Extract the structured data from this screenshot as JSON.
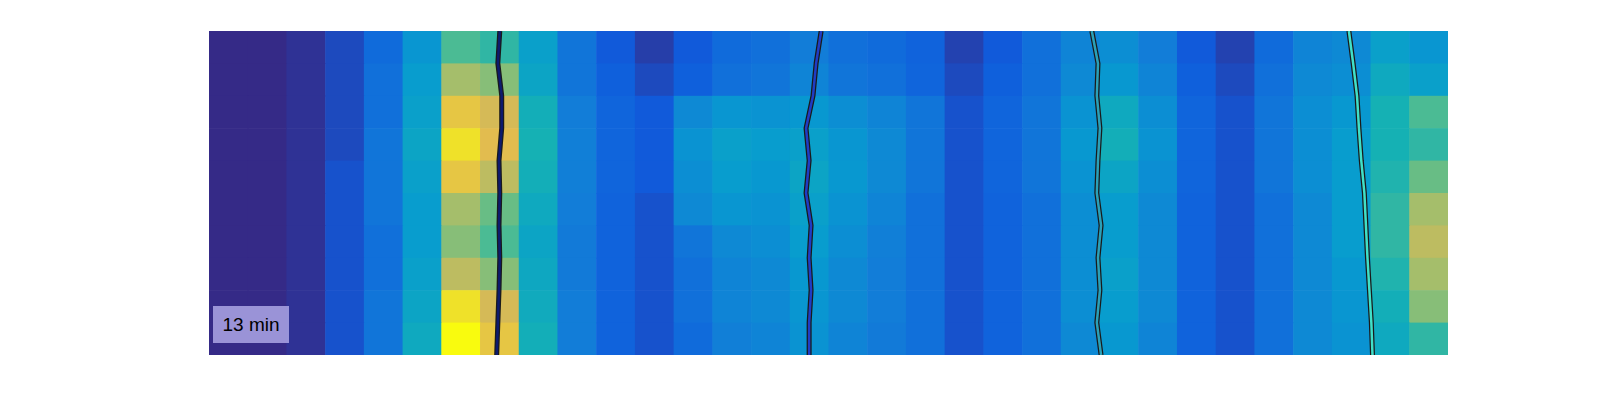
{
  "chart_data": {
    "type": "heatmap",
    "annotation": "13 min",
    "xlim": [
      0,
      32
    ],
    "ylim": [
      0,
      10
    ],
    "tick_labels": false,
    "color_range": [
      0,
      1
    ],
    "z": [
      [
        0,
        0,
        0.02,
        0.08,
        0.18,
        0.35,
        0.6,
        0.55,
        0.4,
        0.22,
        0.12,
        0.05,
        0.12,
        0.18,
        0.2,
        0.25,
        0.2,
        0.18,
        0.15,
        0.06,
        0.12,
        0.2,
        0.28,
        0.32,
        0.25,
        0.12,
        0.06,
        0.18,
        0.28,
        0.3,
        0.4,
        0.35
      ],
      [
        0,
        0,
        0.02,
        0.08,
        0.2,
        0.38,
        0.75,
        0.7,
        0.42,
        0.22,
        0.14,
        0.08,
        0.14,
        0.2,
        0.22,
        0.28,
        0.22,
        0.2,
        0.16,
        0.08,
        0.14,
        0.2,
        0.3,
        0.36,
        0.28,
        0.14,
        0.08,
        0.2,
        0.3,
        0.32,
        0.45,
        0.4
      ],
      [
        0,
        0,
        0.02,
        0.08,
        0.2,
        0.4,
        0.9,
        0.85,
        0.48,
        0.25,
        0.16,
        0.12,
        0.3,
        0.35,
        0.34,
        0.36,
        0.32,
        0.28,
        0.22,
        0.1,
        0.16,
        0.22,
        0.34,
        0.45,
        0.32,
        0.16,
        0.1,
        0.22,
        0.32,
        0.36,
        0.5,
        0.6
      ],
      [
        0,
        0,
        0.02,
        0.08,
        0.22,
        0.42,
        0.95,
        0.88,
        0.5,
        0.26,
        0.16,
        0.12,
        0.34,
        0.4,
        0.38,
        0.4,
        0.35,
        0.3,
        0.22,
        0.1,
        0.16,
        0.22,
        0.36,
        0.48,
        0.34,
        0.16,
        0.1,
        0.22,
        0.32,
        0.38,
        0.5,
        0.55
      ],
      [
        0,
        0,
        0.02,
        0.1,
        0.22,
        0.4,
        0.9,
        0.8,
        0.48,
        0.26,
        0.16,
        0.12,
        0.32,
        0.38,
        0.36,
        0.42,
        0.36,
        0.3,
        0.22,
        0.1,
        0.16,
        0.22,
        0.34,
        0.42,
        0.32,
        0.16,
        0.1,
        0.22,
        0.32,
        0.38,
        0.52,
        0.65
      ],
      [
        0,
        0,
        0.02,
        0.1,
        0.22,
        0.38,
        0.75,
        0.65,
        0.45,
        0.25,
        0.15,
        0.1,
        0.3,
        0.35,
        0.34,
        0.4,
        0.34,
        0.28,
        0.2,
        0.1,
        0.15,
        0.2,
        0.32,
        0.38,
        0.3,
        0.15,
        0.1,
        0.2,
        0.3,
        0.38,
        0.55,
        0.75
      ],
      [
        0,
        0,
        0.02,
        0.1,
        0.2,
        0.38,
        0.7,
        0.6,
        0.42,
        0.24,
        0.15,
        0.1,
        0.22,
        0.3,
        0.32,
        0.38,
        0.32,
        0.26,
        0.2,
        0.1,
        0.15,
        0.2,
        0.32,
        0.38,
        0.3,
        0.15,
        0.1,
        0.2,
        0.3,
        0.38,
        0.55,
        0.8
      ],
      [
        0,
        0,
        0.02,
        0.1,
        0.2,
        0.4,
        0.8,
        0.7,
        0.44,
        0.24,
        0.15,
        0.1,
        0.2,
        0.28,
        0.3,
        0.36,
        0.3,
        0.25,
        0.2,
        0.1,
        0.15,
        0.2,
        0.32,
        0.4,
        0.3,
        0.15,
        0.1,
        0.2,
        0.3,
        0.36,
        0.52,
        0.75
      ],
      [
        0,
        0,
        0.02,
        0.1,
        0.22,
        0.42,
        0.95,
        0.85,
        0.46,
        0.25,
        0.15,
        0.1,
        0.2,
        0.28,
        0.3,
        0.35,
        0.3,
        0.25,
        0.2,
        0.1,
        0.15,
        0.2,
        0.32,
        0.38,
        0.3,
        0.15,
        0.1,
        0.2,
        0.3,
        0.35,
        0.48,
        0.7
      ],
      [
        0,
        0,
        0.02,
        0.1,
        0.22,
        0.45,
        1.0,
        0.9,
        0.48,
        0.25,
        0.15,
        0.1,
        0.18,
        0.26,
        0.28,
        0.34,
        0.28,
        0.24,
        0.2,
        0.1,
        0.15,
        0.2,
        0.3,
        0.36,
        0.28,
        0.15,
        0.1,
        0.2,
        0.3,
        0.34,
        0.45,
        0.55
      ]
    ],
    "series": [
      {
        "color": "#0d1a6e",
        "x": [
          7.51,
          7.46,
          7.56,
          7.56,
          7.49,
          7.51,
          7.49,
          7.51,
          7.49,
          7.46,
          7.43
        ],
        "values": [
          0,
          1,
          2,
          3,
          4,
          5,
          6,
          7,
          8,
          9,
          10
        ]
      },
      {
        "color": "#1f3cc4",
        "x": [
          15.81,
          15.68,
          15.6,
          15.42,
          15.5,
          15.42,
          15.55,
          15.5,
          15.55,
          15.5,
          15.5
        ],
        "values": [
          0,
          1,
          2,
          3,
          4,
          5,
          6,
          7,
          8,
          9,
          10
        ]
      },
      {
        "color": "#2aa0b8",
        "x": [
          22.8,
          22.96,
          22.93,
          23.01,
          22.96,
          22.93,
          23.04,
          22.96,
          23.01,
          22.93,
          23.04
        ],
        "values": [
          0,
          1,
          2,
          3,
          4,
          5,
          6,
          7,
          8,
          9,
          10
        ]
      },
      {
        "color": "#40e0c8",
        "x": [
          29.44,
          29.55,
          29.65,
          29.7,
          29.76,
          29.84,
          29.88,
          29.92,
          29.97,
          30.02,
          30.05
        ],
        "values": [
          0,
          1,
          2,
          3,
          4,
          5,
          6,
          7,
          8,
          9,
          10
        ]
      }
    ]
  }
}
